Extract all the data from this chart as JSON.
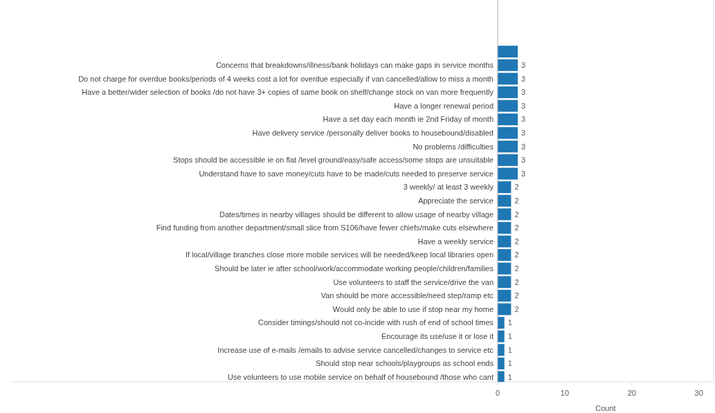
{
  "chart_data": {
    "type": "bar",
    "orientation": "horizontal",
    "xlabel": "Count",
    "categories": [
      null,
      "Concerns that breakdowns/illness/bank holidays can make gaps in service months",
      "Do not charge for overdue books/periods of 4 weeks cost a lot for overdue especially if van cancelled/allow to miss a month",
      "Have a better/wider selection of books /do not have 3+ copies of same book on shelf/change stock on van more frequently",
      "Have a longer renewal period",
      "Have a set day each month ie 2nd Friday of month",
      "Have delivery service /personally deliver books to housebound/disabled",
      "No problems /difficulties",
      "Stops should be accessible ie on flat /level ground/easy/safe access/some stops are unsuitable",
      "Understand have to save money/cuts have to be made/cuts needed to preserve service",
      "3 weekly/ at least 3 weekly",
      "Appreciate the service",
      "Dates/times in nearby villages should be different to allow usage of nearby village",
      "Find funding from another department/small slice from S106/have fewer chiefs/make cuts elsewhere",
      "Have a weekly service",
      "If local/village branches close more mobile services will be needed/keep local libraries open",
      "Should be later ie after school/work/accommodate working people/children/families",
      "Use volunteers to staff the service/drive the van",
      "Van should be more accessible/need step/ramp etc",
      "Would only be able to use if stop near my home",
      "Consider timings/should not co-incide with rush of end of school times",
      "Encourage its use/use it or lose it",
      "Increase use of e-mails /emails to advise service cancelled/changes to service etc",
      "Should stop near schools/playgroups as school ends",
      "Use volunteers to use mobile service on behalf of housebound /those who cant"
    ],
    "values": [
      3,
      3,
      3,
      3,
      3,
      3,
      3,
      3,
      3,
      3,
      2,
      2,
      2,
      2,
      2,
      2,
      2,
      2,
      2,
      2,
      1,
      1,
      1,
      1,
      1
    ],
    "value_labels": [
      null,
      "3",
      "3",
      "3",
      "3",
      "3",
      "3",
      "3",
      "3",
      "3",
      "2",
      "2",
      "2",
      "2",
      "2",
      "2",
      "2",
      "2",
      "2",
      "2",
      "1",
      "1",
      "1",
      "1",
      "1"
    ],
    "color": "#1f77b4",
    "xlim": [
      0,
      32.2
    ],
    "xticks": [
      0,
      10,
      20,
      30
    ],
    "grid": false
  }
}
